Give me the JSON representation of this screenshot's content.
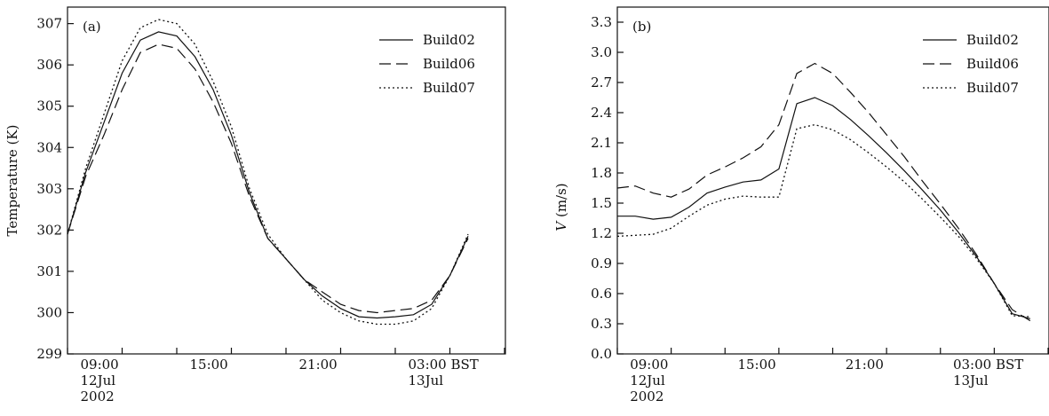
{
  "chart_data": [
    {
      "type": "line",
      "panel_label": "(a)",
      "ylabel": "Temperature (K)",
      "ylim": [
        299,
        307.4
      ],
      "yticks": [
        299,
        300,
        301,
        302,
        303,
        304,
        305,
        306,
        307
      ],
      "xlim": [
        8,
        32
      ],
      "xtick_labels": [
        {
          "x": 9,
          "lines": [
            "09:00",
            "12Jul",
            "2002"
          ]
        },
        {
          "x": 15,
          "lines": [
            "15:00"
          ]
        },
        {
          "x": 21,
          "lines": [
            "21:00"
          ]
        },
        {
          "x": 27,
          "lines": [
            "03:00  BST",
            "13Jul"
          ]
        }
      ],
      "minor_ticks": [
        8,
        11,
        14,
        17,
        20,
        23,
        26,
        29,
        32
      ],
      "grid": false,
      "legend_position": "top-right",
      "series": [
        {
          "name": "Build02",
          "dash": "solid",
          "points": [
            [
              8,
              301.9
            ],
            [
              9,
              303.4
            ],
            [
              10,
              304.6
            ],
            [
              11,
              305.8
            ],
            [
              12,
              306.6
            ],
            [
              13,
              306.8
            ],
            [
              14,
              306.7
            ],
            [
              15,
              306.2
            ],
            [
              16,
              305.4
            ],
            [
              17,
              304.3
            ],
            [
              18,
              302.9
            ],
            [
              19,
              301.8
            ],
            [
              20,
              301.3
            ],
            [
              21,
              300.8
            ],
            [
              22,
              300.4
            ],
            [
              23,
              300.1
            ],
            [
              24,
              299.9
            ],
            [
              25,
              299.87
            ],
            [
              26,
              299.9
            ],
            [
              27,
              299.95
            ],
            [
              28,
              300.2
            ],
            [
              29,
              300.9
            ],
            [
              30,
              301.85
            ]
          ]
        },
        {
          "name": "Build06",
          "dash": "dashed",
          "points": [
            [
              8,
              301.9
            ],
            [
              9,
              303.3
            ],
            [
              10,
              304.3
            ],
            [
              11,
              305.4
            ],
            [
              12,
              306.3
            ],
            [
              13,
              306.5
            ],
            [
              14,
              306.4
            ],
            [
              15,
              305.9
            ],
            [
              16,
              305.1
            ],
            [
              17,
              304.1
            ],
            [
              18,
              302.8
            ],
            [
              19,
              301.8
            ],
            [
              20,
              301.3
            ],
            [
              21,
              300.8
            ],
            [
              22,
              300.5
            ],
            [
              23,
              300.2
            ],
            [
              24,
              300.05
            ],
            [
              25,
              300.0
            ],
            [
              26,
              300.05
            ],
            [
              27,
              300.1
            ],
            [
              28,
              300.3
            ],
            [
              29,
              300.9
            ],
            [
              30,
              301.8
            ]
          ]
        },
        {
          "name": "Build07",
          "dash": "dotted",
          "points": [
            [
              8,
              301.9
            ],
            [
              9,
              303.5
            ],
            [
              10,
              304.8
            ],
            [
              11,
              306.1
            ],
            [
              12,
              306.9
            ],
            [
              13,
              307.1
            ],
            [
              14,
              307.0
            ],
            [
              15,
              306.5
            ],
            [
              16,
              305.6
            ],
            [
              17,
              304.5
            ],
            [
              18,
              303.0
            ],
            [
              19,
              301.9
            ],
            [
              20,
              301.3
            ],
            [
              21,
              300.8
            ],
            [
              22,
              300.3
            ],
            [
              23,
              300.0
            ],
            [
              24,
              299.8
            ],
            [
              25,
              299.72
            ],
            [
              26,
              299.72
            ],
            [
              27,
              299.8
            ],
            [
              28,
              300.1
            ],
            [
              29,
              300.9
            ],
            [
              30,
              301.9
            ]
          ]
        }
      ]
    },
    {
      "type": "line",
      "panel_label": "(b)",
      "ylabel_italic": "V",
      "ylabel_rest": " (m/s)",
      "ylim": [
        0.0,
        3.45
      ],
      "yticks": [
        "0.0",
        "0.3",
        "0.6",
        "0.9",
        "1.2",
        "1.5",
        "1.8",
        "2.1",
        "2.4",
        "2.7",
        "3.0",
        "3.3"
      ],
      "xlim": [
        8,
        32
      ],
      "xtick_labels": [
        {
          "x": 9,
          "lines": [
            "09:00",
            "12Jul",
            "2002"
          ]
        },
        {
          "x": 15,
          "lines": [
            "15:00"
          ]
        },
        {
          "x": 21,
          "lines": [
            "21:00"
          ]
        },
        {
          "x": 27,
          "lines": [
            "03:00  BST",
            "13Jul"
          ]
        }
      ],
      "minor_ticks": [
        8,
        11,
        14,
        17,
        20,
        23,
        26,
        29,
        32
      ],
      "grid": false,
      "legend_position": "top-right",
      "series": [
        {
          "name": "Build02",
          "dash": "solid",
          "points": [
            [
              8,
              1.37
            ],
            [
              9,
              1.37
            ],
            [
              10,
              1.34
            ],
            [
              11,
              1.36
            ],
            [
              12,
              1.46
            ],
            [
              13,
              1.6
            ],
            [
              14,
              1.66
            ],
            [
              15,
              1.71
            ],
            [
              16,
              1.73
            ],
            [
              17,
              1.84
            ],
            [
              18,
              2.49
            ],
            [
              19,
              2.55
            ],
            [
              20,
              2.47
            ],
            [
              21,
              2.33
            ],
            [
              22,
              2.17
            ],
            [
              23,
              2.0
            ],
            [
              24,
              1.82
            ],
            [
              25,
              1.63
            ],
            [
              26,
              1.43
            ],
            [
              27,
              1.21
            ],
            [
              28,
              0.97
            ],
            [
              29,
              0.7
            ],
            [
              30,
              0.4
            ],
            [
              31,
              0.35
            ]
          ]
        },
        {
          "name": "Build06",
          "dash": "dashed",
          "points": [
            [
              8,
              1.65
            ],
            [
              9,
              1.67
            ],
            [
              10,
              1.6
            ],
            [
              11,
              1.56
            ],
            [
              12,
              1.64
            ],
            [
              13,
              1.78
            ],
            [
              14,
              1.86
            ],
            [
              15,
              1.95
            ],
            [
              16,
              2.06
            ],
            [
              17,
              2.28
            ],
            [
              18,
              2.79
            ],
            [
              19,
              2.89
            ],
            [
              20,
              2.79
            ],
            [
              21,
              2.6
            ],
            [
              22,
              2.4
            ],
            [
              23,
              2.18
            ],
            [
              24,
              1.96
            ],
            [
              25,
              1.72
            ],
            [
              26,
              1.49
            ],
            [
              27,
              1.25
            ],
            [
              28,
              0.99
            ],
            [
              29,
              0.7
            ],
            [
              30,
              0.44
            ],
            [
              31,
              0.33
            ]
          ]
        },
        {
          "name": "Build07",
          "dash": "dotted",
          "points": [
            [
              8,
              1.17
            ],
            [
              9,
              1.18
            ],
            [
              10,
              1.19
            ],
            [
              11,
              1.25
            ],
            [
              12,
              1.37
            ],
            [
              13,
              1.48
            ],
            [
              14,
              1.54
            ],
            [
              15,
              1.57
            ],
            [
              16,
              1.56
            ],
            [
              17,
              1.56
            ],
            [
              18,
              2.24
            ],
            [
              19,
              2.28
            ],
            [
              20,
              2.23
            ],
            [
              21,
              2.13
            ],
            [
              22,
              2.0
            ],
            [
              23,
              1.86
            ],
            [
              24,
              1.71
            ],
            [
              25,
              1.54
            ],
            [
              26,
              1.36
            ],
            [
              27,
              1.17
            ],
            [
              28,
              0.95
            ],
            [
              29,
              0.7
            ],
            [
              30,
              0.38
            ],
            [
              31,
              0.37
            ]
          ]
        }
      ]
    }
  ]
}
